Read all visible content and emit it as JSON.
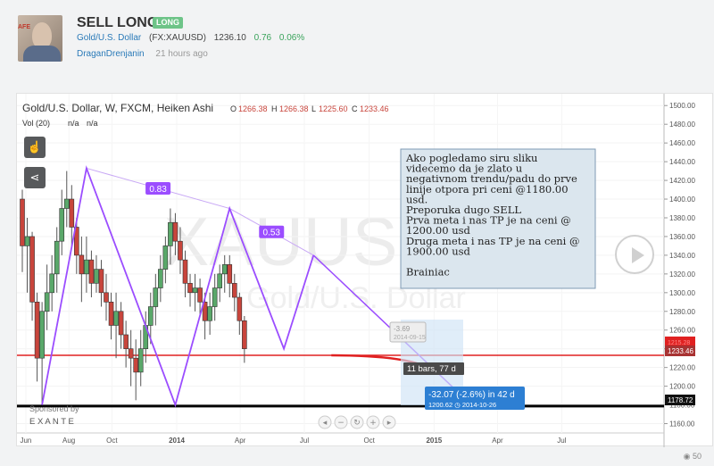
{
  "idea": {
    "title": "SELL LONG",
    "badge": "LONG",
    "symbol_name": "Gold/U.S. Dollar",
    "symbol_code": "(FX:XAUUSD)",
    "price": "1236.10",
    "change": "0.76",
    "change_pct": "0.06%",
    "author": "DraganDrenjanin",
    "time_ago": "21 hours ago",
    "avatar_tag": "AFE",
    "views": "50"
  },
  "chart_header": {
    "symbol": "Gold/U.S. Dollar, W, FXCM, Heiken Ashi",
    "o_label": "O",
    "o_val": "1266.38",
    "h_label": "H",
    "h_val": "1266.38",
    "l_label": "L",
    "l_val": "1225.60",
    "c_label": "C",
    "c_val": "1233.46",
    "vol_label": "Vol (20)",
    "vol_a": "n/a",
    "vol_b": "n/a"
  },
  "watermark": {
    "big": "XAUUSD, W",
    "small": "Gold/U.S. Dollar"
  },
  "sponsor": {
    "text": "Sponsored by",
    "brand": "E X A N T E"
  },
  "note": {
    "lines": [
      "Ako pogledamo siru sliku",
      "videcemo da je zlato u",
      "negativnom trendu/padu do prve",
      "linije otpora pri ceni @1180.00",
      "usd.",
      "Preporuka dugo SELL",
      "Prva meta i nas TP je na ceni @",
      "1200.00 usd",
      "Druga meta i nas TP je na ceni @",
      "1900.00 usd",
      "",
      "Brainiac"
    ]
  },
  "labels": {
    "ratio_1": "0.83",
    "ratio_2": "0.53",
    "bars": "11 bars, 77 d",
    "measure": "-32.07 (-2.6%) in 42 d",
    "measure_sub": "1200.62  ◷ 2014-10-26",
    "faded_1": "-3.69",
    "faded_2": "2014-09-15",
    "price_tag": "1233.46",
    "support_tag": "1178.72",
    "overlap_tag": "1215.28"
  },
  "colors": {
    "bull": "#5aa86a",
    "bear": "#c8453c",
    "wave": "#9b4dff",
    "resistance": "#e02020",
    "support": "#000000",
    "measure": "#2d7fd3",
    "note_bg": "#dbe6ee"
  },
  "chart_data": {
    "type": "candlestick",
    "y_axis": {
      "range": [
        1150,
        1505
      ],
      "ticks": [
        "1500.00",
        "1480.00",
        "1460.00",
        "1440.00",
        "1420.00",
        "1400.00",
        "1380.00",
        "1360.00",
        "1340.00",
        "1320.00",
        "1300.00",
        "1280.00",
        "1260.00",
        "1240.00",
        "1220.00",
        "1200.00",
        "1180.00",
        "1160.00"
      ]
    },
    "x_axis": {
      "ticks": [
        "Jun",
        "Aug",
        "Oct",
        "2014",
        "Apr",
        "Jul",
        "Oct",
        "2015",
        "Apr",
        "Jul"
      ]
    },
    "horizontal_lines": [
      {
        "name": "resistance",
        "value": 1233
      },
      {
        "name": "support",
        "value": 1178.72
      }
    ],
    "wave_points": [
      {
        "date": "2013-06-24",
        "value": 1180
      },
      {
        "date": "2013-08-26",
        "value": 1433
      },
      {
        "date": "2013-12-30",
        "value": 1180
      },
      {
        "date": "2014-03-17",
        "value": 1390
      },
      {
        "date": "2014-06-02",
        "value": 1240
      },
      {
        "date": "2014-07-14",
        "value": 1340
      }
    ],
    "retracement_lines": [
      {
        "from": "2013-08-26",
        "to": "2014-03-17",
        "label": "0.83"
      },
      {
        "from": "2014-03-17",
        "to": "2014-07-14",
        "label": "0.53"
      }
    ],
    "candles": [
      [
        1400,
        1410,
        1322,
        1350
      ],
      [
        1350,
        1380,
        1300,
        1360
      ],
      [
        1360,
        1365,
        1270,
        1290
      ],
      [
        1290,
        1300,
        1205,
        1230
      ],
      [
        1230,
        1290,
        1180,
        1280
      ],
      [
        1280,
        1330,
        1260,
        1300
      ],
      [
        1300,
        1340,
        1280,
        1320
      ],
      [
        1320,
        1370,
        1300,
        1355
      ],
      [
        1355,
        1410,
        1340,
        1390
      ],
      [
        1390,
        1430,
        1370,
        1400
      ],
      [
        1400,
        1415,
        1350,
        1370
      ],
      [
        1370,
        1380,
        1320,
        1340
      ],
      [
        1340,
        1360,
        1290,
        1320
      ],
      [
        1320,
        1360,
        1300,
        1335
      ],
      [
        1335,
        1345,
        1295,
        1310
      ],
      [
        1310,
        1340,
        1300,
        1325
      ],
      [
        1325,
        1335,
        1285,
        1300
      ],
      [
        1300,
        1320,
        1270,
        1290
      ],
      [
        1290,
        1300,
        1250,
        1265
      ],
      [
        1265,
        1300,
        1230,
        1280
      ],
      [
        1280,
        1290,
        1240,
        1255
      ],
      [
        1255,
        1270,
        1220,
        1240
      ],
      [
        1240,
        1260,
        1200,
        1230
      ],
      [
        1230,
        1250,
        1185,
        1215
      ],
      [
        1215,
        1260,
        1200,
        1240
      ],
      [
        1240,
        1280,
        1225,
        1265
      ],
      [
        1265,
        1300,
        1245,
        1285
      ],
      [
        1285,
        1320,
        1265,
        1305
      ],
      [
        1305,
        1340,
        1290,
        1325
      ],
      [
        1325,
        1360,
        1310,
        1350
      ],
      [
        1350,
        1390,
        1330,
        1375
      ],
      [
        1375,
        1385,
        1340,
        1355
      ],
      [
        1355,
        1370,
        1320,
        1335
      ],
      [
        1335,
        1345,
        1295,
        1310
      ],
      [
        1310,
        1320,
        1285,
        1300
      ],
      [
        1300,
        1320,
        1280,
        1305
      ],
      [
        1305,
        1315,
        1275,
        1290
      ],
      [
        1290,
        1300,
        1250,
        1270
      ],
      [
        1270,
        1300,
        1255,
        1285
      ],
      [
        1285,
        1320,
        1270,
        1305
      ],
      [
        1305,
        1330,
        1290,
        1320
      ],
      [
        1320,
        1340,
        1300,
        1330
      ],
      [
        1330,
        1340,
        1295,
        1310
      ],
      [
        1310,
        1320,
        1280,
        1295
      ],
      [
        1295,
        1300,
        1255,
        1270
      ],
      [
        1270,
        1275,
        1225,
        1240
      ]
    ]
  }
}
